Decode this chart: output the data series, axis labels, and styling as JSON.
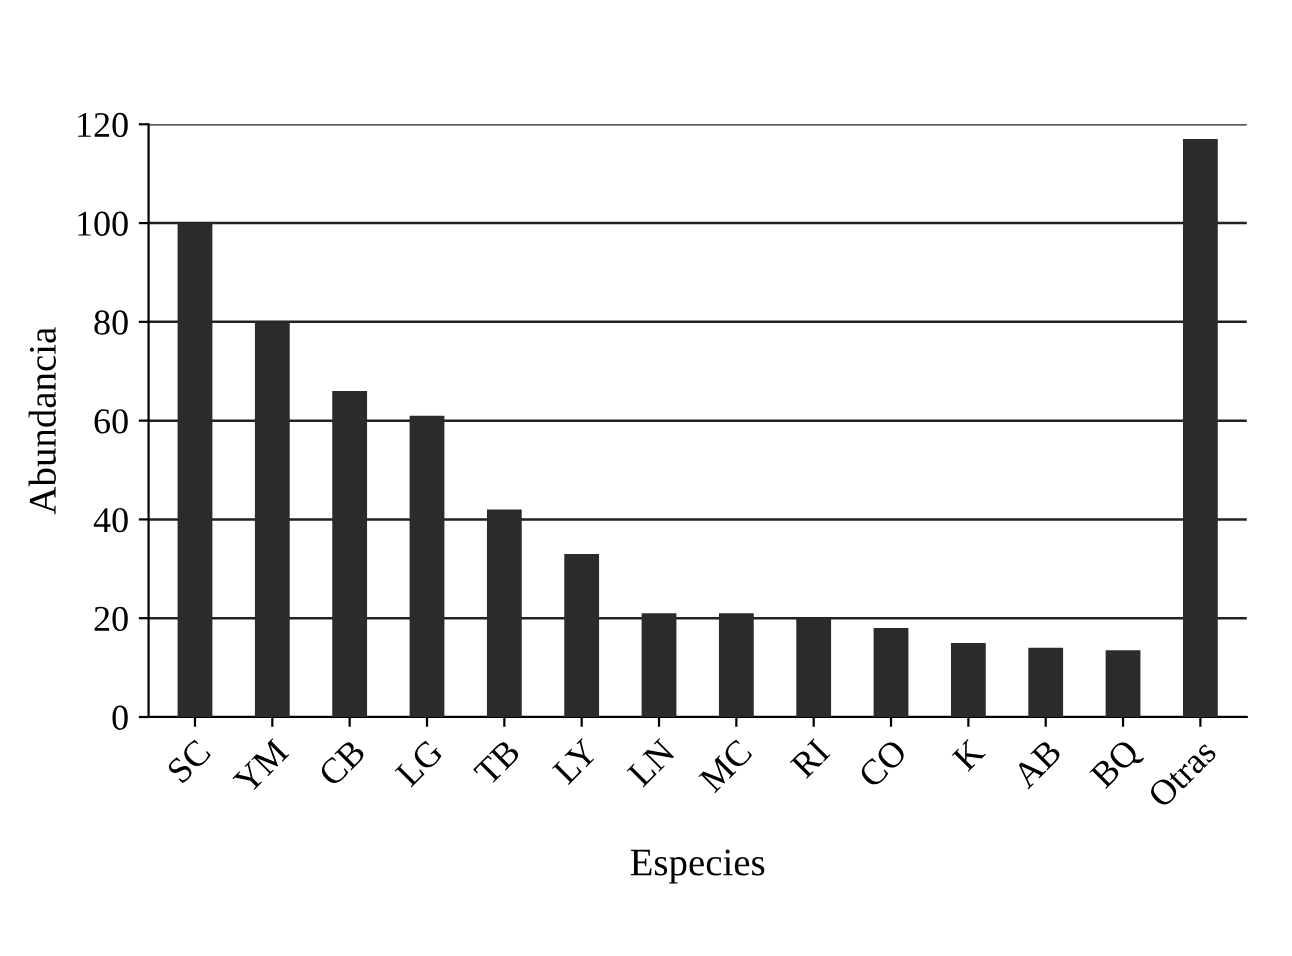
{
  "chart_data": {
    "type": "bar",
    "xlabel": "Especies",
    "ylabel": "Abundancia",
    "categories": [
      "SC",
      "YM",
      "CB",
      "LG",
      "TB",
      "LY",
      "LN",
      "MC",
      "RI",
      "CO",
      "K",
      "AB",
      "BQ",
      "Otras"
    ],
    "values": [
      100,
      80,
      66,
      61,
      42,
      33,
      21,
      21,
      20,
      18,
      15,
      14,
      13.5,
      117
    ],
    "color": "#2b2b2b",
    "ylim": [
      0,
      120
    ],
    "yticks": [
      0,
      20,
      40,
      60,
      80,
      100,
      120
    ],
    "grid": "y"
  }
}
